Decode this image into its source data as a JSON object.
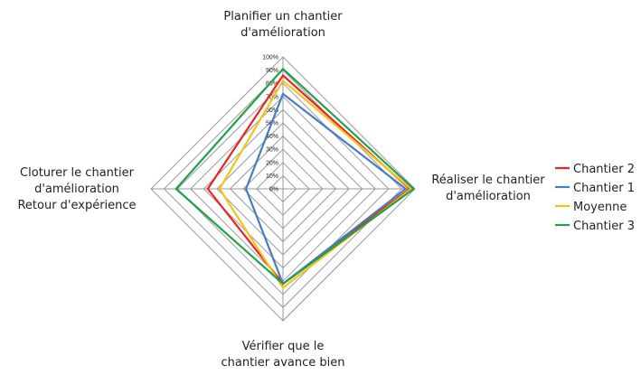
{
  "chart_data": {
    "type": "radar",
    "title": "",
    "axes": [
      "Planifier un chantier d'amélioration",
      "Réaliser le chantier d'amélioration",
      "Vérifier que le chantier avance bien",
      "Cloturer le chantier d'amélioration Retour d'expérience"
    ],
    "axis_label_lines": [
      [
        "Planifier un chantier",
        "d'amélioration"
      ],
      [
        "Réaliser le chantier",
        "d'amélioration"
      ],
      [
        "Vérifier que le",
        "chantier avance bien"
      ],
      [
        "Cloturer le chantier",
        "d'amélioration",
        "Retour d'expérience"
      ]
    ],
    "r_range": [
      0,
      100
    ],
    "r_tick_labels": [
      "0%",
      "10%",
      "20%",
      "30%",
      "40%",
      "50%",
      "60%",
      "70%",
      "80%",
      "90%",
      "100%"
    ],
    "grid": true,
    "legend_position": "right",
    "series": [
      {
        "name": "Chantier 2",
        "color": "#e8251f",
        "values": [
          86,
          96,
          72,
          57
        ]
      },
      {
        "name": "Chantier 1",
        "color": "#4a7cc1",
        "values": [
          72,
          93,
          72,
          28
        ]
      },
      {
        "name": "Moyenne",
        "color": "#f5c21b",
        "values": [
          82,
          97,
          75,
          48
        ]
      },
      {
        "name": "Chantier 3",
        "color": "#22a04a",
        "values": [
          91,
          99,
          72,
          81
        ]
      }
    ]
  }
}
